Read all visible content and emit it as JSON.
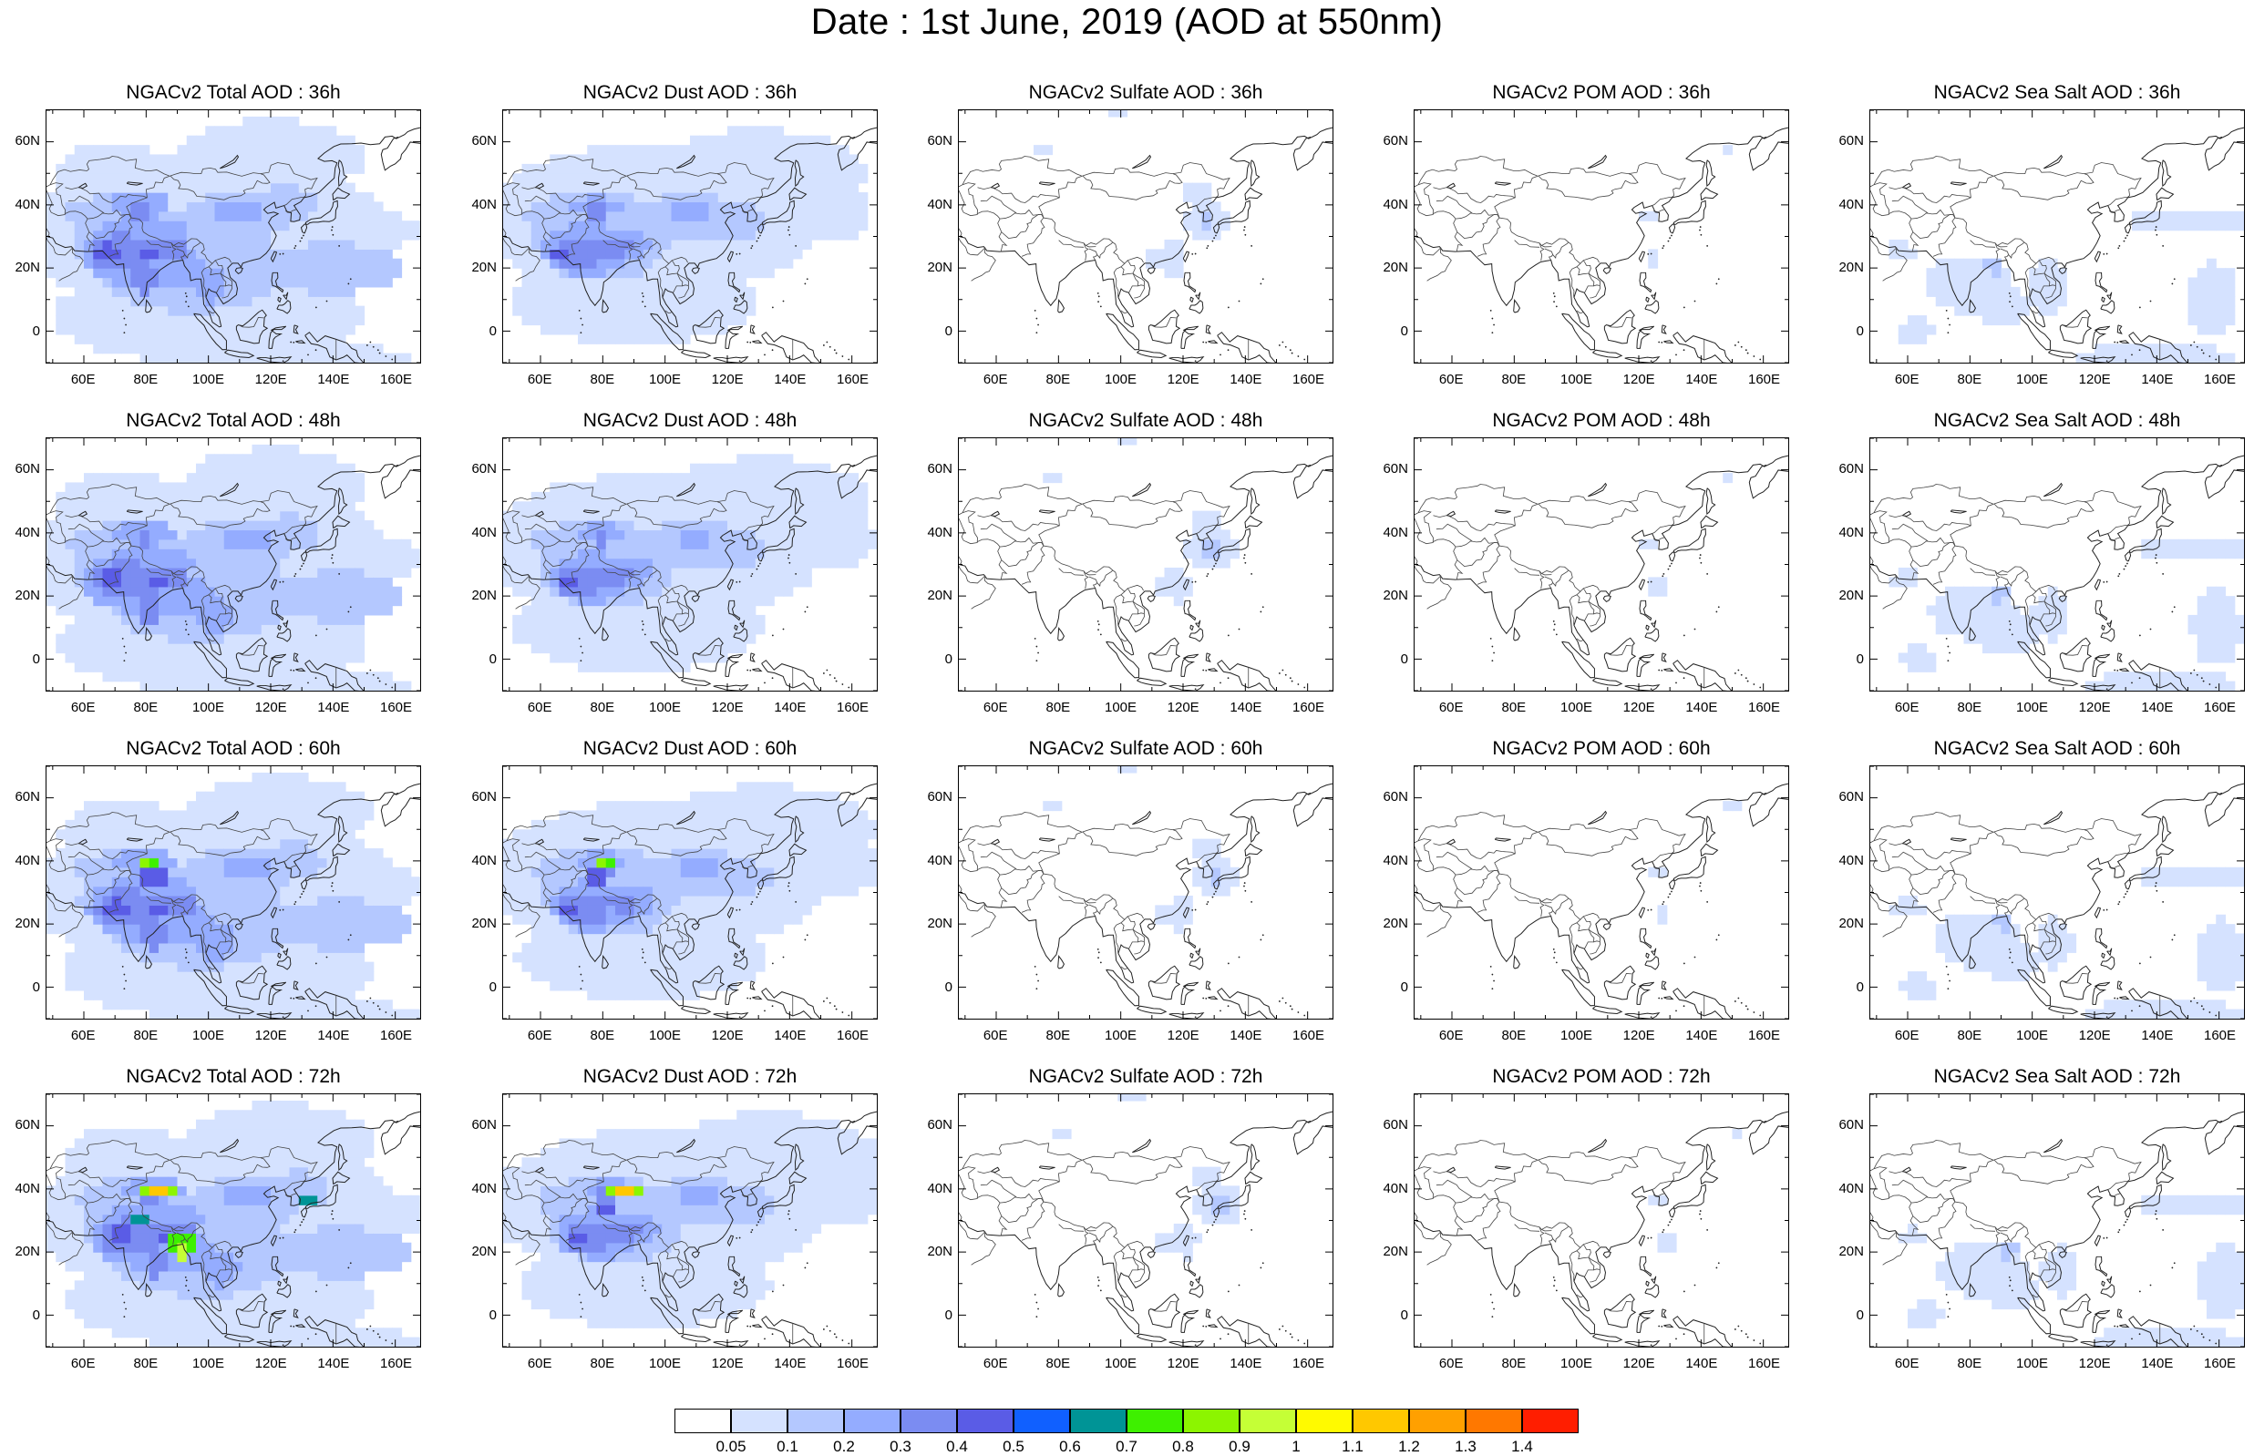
{
  "title": "Date : 1st June, 2019 (AOD at 550nm)",
  "panels": [
    {
      "title": "NGACv2 Total AOD : 36h",
      "field": "total",
      "hour": 36
    },
    {
      "title": "NGACv2 Dust AOD : 36h",
      "field": "dust",
      "hour": 36
    },
    {
      "title": "NGACv2 Sulfate AOD : 36h",
      "field": "sulfate",
      "hour": 36
    },
    {
      "title": "NGACv2 POM AOD : 36h",
      "field": "pom",
      "hour": 36
    },
    {
      "title": "NGACv2 Sea Salt AOD : 36h",
      "field": "seasalt",
      "hour": 36
    },
    {
      "title": "NGACv2 Total AOD : 48h",
      "field": "total",
      "hour": 48
    },
    {
      "title": "NGACv2 Dust AOD : 48h",
      "field": "dust",
      "hour": 48
    },
    {
      "title": "NGACv2 Sulfate AOD : 48h",
      "field": "sulfate",
      "hour": 48
    },
    {
      "title": "NGACv2 POM AOD : 48h",
      "field": "pom",
      "hour": 48
    },
    {
      "title": "NGACv2 Sea Salt AOD : 48h",
      "field": "seasalt",
      "hour": 48
    },
    {
      "title": "NGACv2 Total AOD : 60h",
      "field": "total",
      "hour": 60
    },
    {
      "title": "NGACv2 Dust AOD : 60h",
      "field": "dust",
      "hour": 60
    },
    {
      "title": "NGACv2 Sulfate AOD : 60h",
      "field": "sulfate",
      "hour": 60
    },
    {
      "title": "NGACv2 POM AOD : 60h",
      "field": "pom",
      "hour": 60
    },
    {
      "title": "NGACv2 Sea Salt AOD : 60h",
      "field": "seasalt",
      "hour": 60
    },
    {
      "title": "NGACv2 Total AOD : 72h",
      "field": "total",
      "hour": 72
    },
    {
      "title": "NGACv2 Dust AOD : 72h",
      "field": "dust",
      "hour": 72
    },
    {
      "title": "NGACv2 Sulfate AOD : 72h",
      "field": "sulfate",
      "hour": 72
    },
    {
      "title": "NGACv2 POM AOD : 72h",
      "field": "pom",
      "hour": 72
    },
    {
      "title": "NGACv2 Sea Salt  AOD : 72h",
      "field": "seasalt",
      "hour": 72
    }
  ],
  "map": {
    "lon_range": [
      48,
      168
    ],
    "lat_range": [
      -10,
      70
    ],
    "lon_ticks": [
      "60E",
      "80E",
      "100E",
      "120E",
      "140E",
      "160E"
    ],
    "lat_ticks": [
      "60N",
      "40N",
      "20N",
      "0"
    ]
  },
  "colorbar": {
    "labels": [
      "0.05",
      "0.1",
      "0.2",
      "0.3",
      "0.4",
      "0.5",
      "0.6",
      "0.7",
      "0.8",
      "0.9",
      "1",
      "1.1",
      "1.2",
      "1.3",
      "1.4"
    ],
    "colors": [
      "#ffffff",
      "#d5e2ff",
      "#b4c8ff",
      "#94acff",
      "#7b8cf2",
      "#5a5ce6",
      "#1060ff",
      "#009496",
      "#3ef000",
      "#8cf500",
      "#c5ff36",
      "#fffa00",
      "#ffc800",
      "#ffa000",
      "#ff7800",
      "#ff1e00"
    ]
  }
}
